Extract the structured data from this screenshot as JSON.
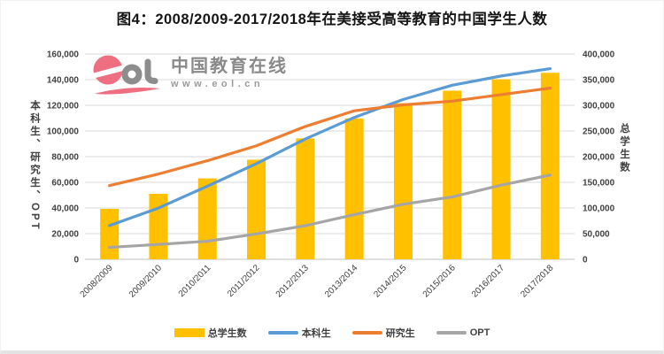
{
  "watermark": {
    "logo": "eol-logo",
    "brand": "中国教育在线",
    "url": "www.eol.cn",
    "brand_color": "#ee6f7f",
    "text_color": "#8a8a8a"
  },
  "chart_data": {
    "type": "combo-bar-line",
    "title": "图4：2008/2009-2017/2018年在美接受高等教育的中国学生人数",
    "categories": [
      "2008/2009",
      "2009/2010",
      "2010/2011",
      "2011/2012",
      "2012/2013",
      "2013/2014",
      "2014/2015",
      "2015/2016",
      "2016/2017",
      "2017/2018"
    ],
    "series": [
      {
        "name": "总学生数",
        "type": "bar",
        "axis": "right",
        "color": "#FFC000",
        "values": [
          98235,
          127628,
          157558,
          194029,
          235597,
          274439,
          304040,
          328547,
          350755,
          363341
        ]
      },
      {
        "name": "本科生",
        "type": "line",
        "axis": "left",
        "color": "#5B9BD5",
        "values": [
          26275,
          39947,
          56976,
          74516,
          93768,
          110550,
          124552,
          135629,
          142851,
          148594
        ]
      },
      {
        "name": "研究生",
        "type": "line",
        "axis": "left",
        "color": "#ED7D31",
        "values": [
          57452,
          66453,
          76830,
          88429,
          103505,
          115727,
          120331,
          123250,
          128320,
          133396
        ]
      },
      {
        "name": "OPT",
        "type": "line",
        "axis": "left",
        "color": "#A5A5A5",
        "values": [
          9300,
          11600,
          14100,
          19800,
          26200,
          34800,
          42900,
          48600,
          57800,
          65600
        ]
      }
    ],
    "left_axis": {
      "title": "本科生、研究生、OPT",
      "min": 0,
      "max": 160000,
      "step": 20000
    },
    "right_axis": {
      "title": "总学生数",
      "min": 0,
      "max": 400000,
      "step": 50000
    },
    "grid": true,
    "gridline_color": "#d9d9d9",
    "axisline_color": "#bfbfbf",
    "legend_position": "bottom",
    "x_label_rotation": -45
  }
}
